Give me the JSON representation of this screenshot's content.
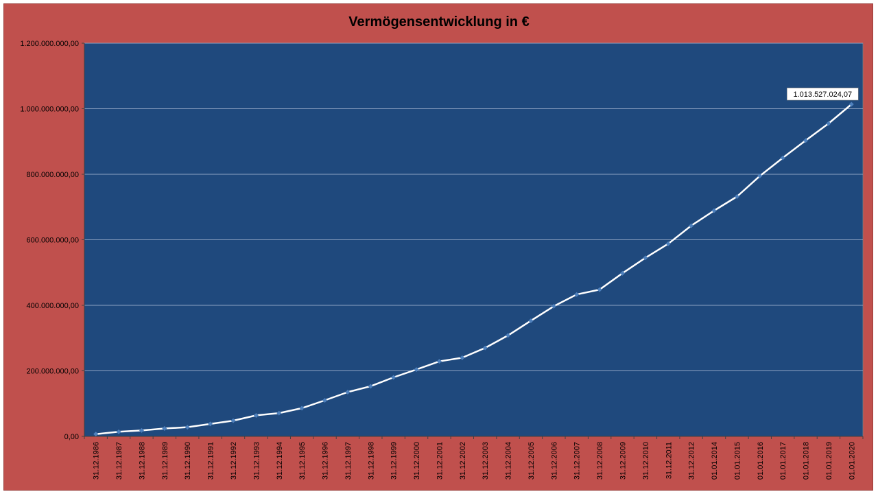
{
  "colors": {
    "frame_background": "#c0504d",
    "plot_background": "#1f497d",
    "gridline": "#8ea3c2",
    "series_line": "#ffffff",
    "marker": "#4f81bd",
    "label_box": "#ffffff"
  },
  "chart_data": {
    "type": "line",
    "title": "Vermögensentwicklung in €",
    "xlabel": "",
    "ylabel": "",
    "ylim": [
      0,
      1200000000
    ],
    "yticks": [
      0,
      200000000,
      400000000,
      600000000,
      800000000,
      1000000000,
      1200000000
    ],
    "ytick_labels": [
      "0,00",
      "200.000.000,00",
      "400.000.000,00",
      "600.000.000,00",
      "800.000.000,00",
      "1.000.000.000,00",
      "1.200.000.000,00"
    ],
    "grid": true,
    "legend": "none",
    "categories": [
      "31.12.1986",
      "31.12.1987",
      "31.12.1988",
      "31.12.1989",
      "31.12.1990",
      "31.12.1991",
      "31.12.1992",
      "31.12.1993",
      "31.12.1994",
      "31.12.1995",
      "31.12.1996",
      "31.12.1997",
      "31.12.1998",
      "31.12.1999",
      "31.12.2000",
      "31.12.2001",
      "31.12.2002",
      "31.12.2003",
      "31.12.2004",
      "31.12.2005",
      "31.12.2006",
      "31.12.2007",
      "31.12.2008",
      "31.12.2009",
      "31.12.2010",
      "31.12.2011",
      "31.12.2012",
      "01.01.2014",
      "01.01.2015",
      "01.01.2016",
      "01.01.2017",
      "01.01.2018",
      "01.01.2019",
      "01.01.2020"
    ],
    "series": [
      {
        "values": [
          7000000,
          14000000,
          18000000,
          24000000,
          28000000,
          38000000,
          48000000,
          64000000,
          71000000,
          86000000,
          110000000,
          135000000,
          153000000,
          180000000,
          204000000,
          229000000,
          240000000,
          270000000,
          308000000,
          353000000,
          397000000,
          433000000,
          448000000,
          498000000,
          545000000,
          588000000,
          643000000,
          689000000,
          732000000,
          795000000,
          850000000,
          903000000,
          955000000,
          1013527024.07
        ]
      }
    ],
    "data_labels": [
      {
        "index": 33,
        "text": "1.013.527.024,07"
      }
    ]
  }
}
